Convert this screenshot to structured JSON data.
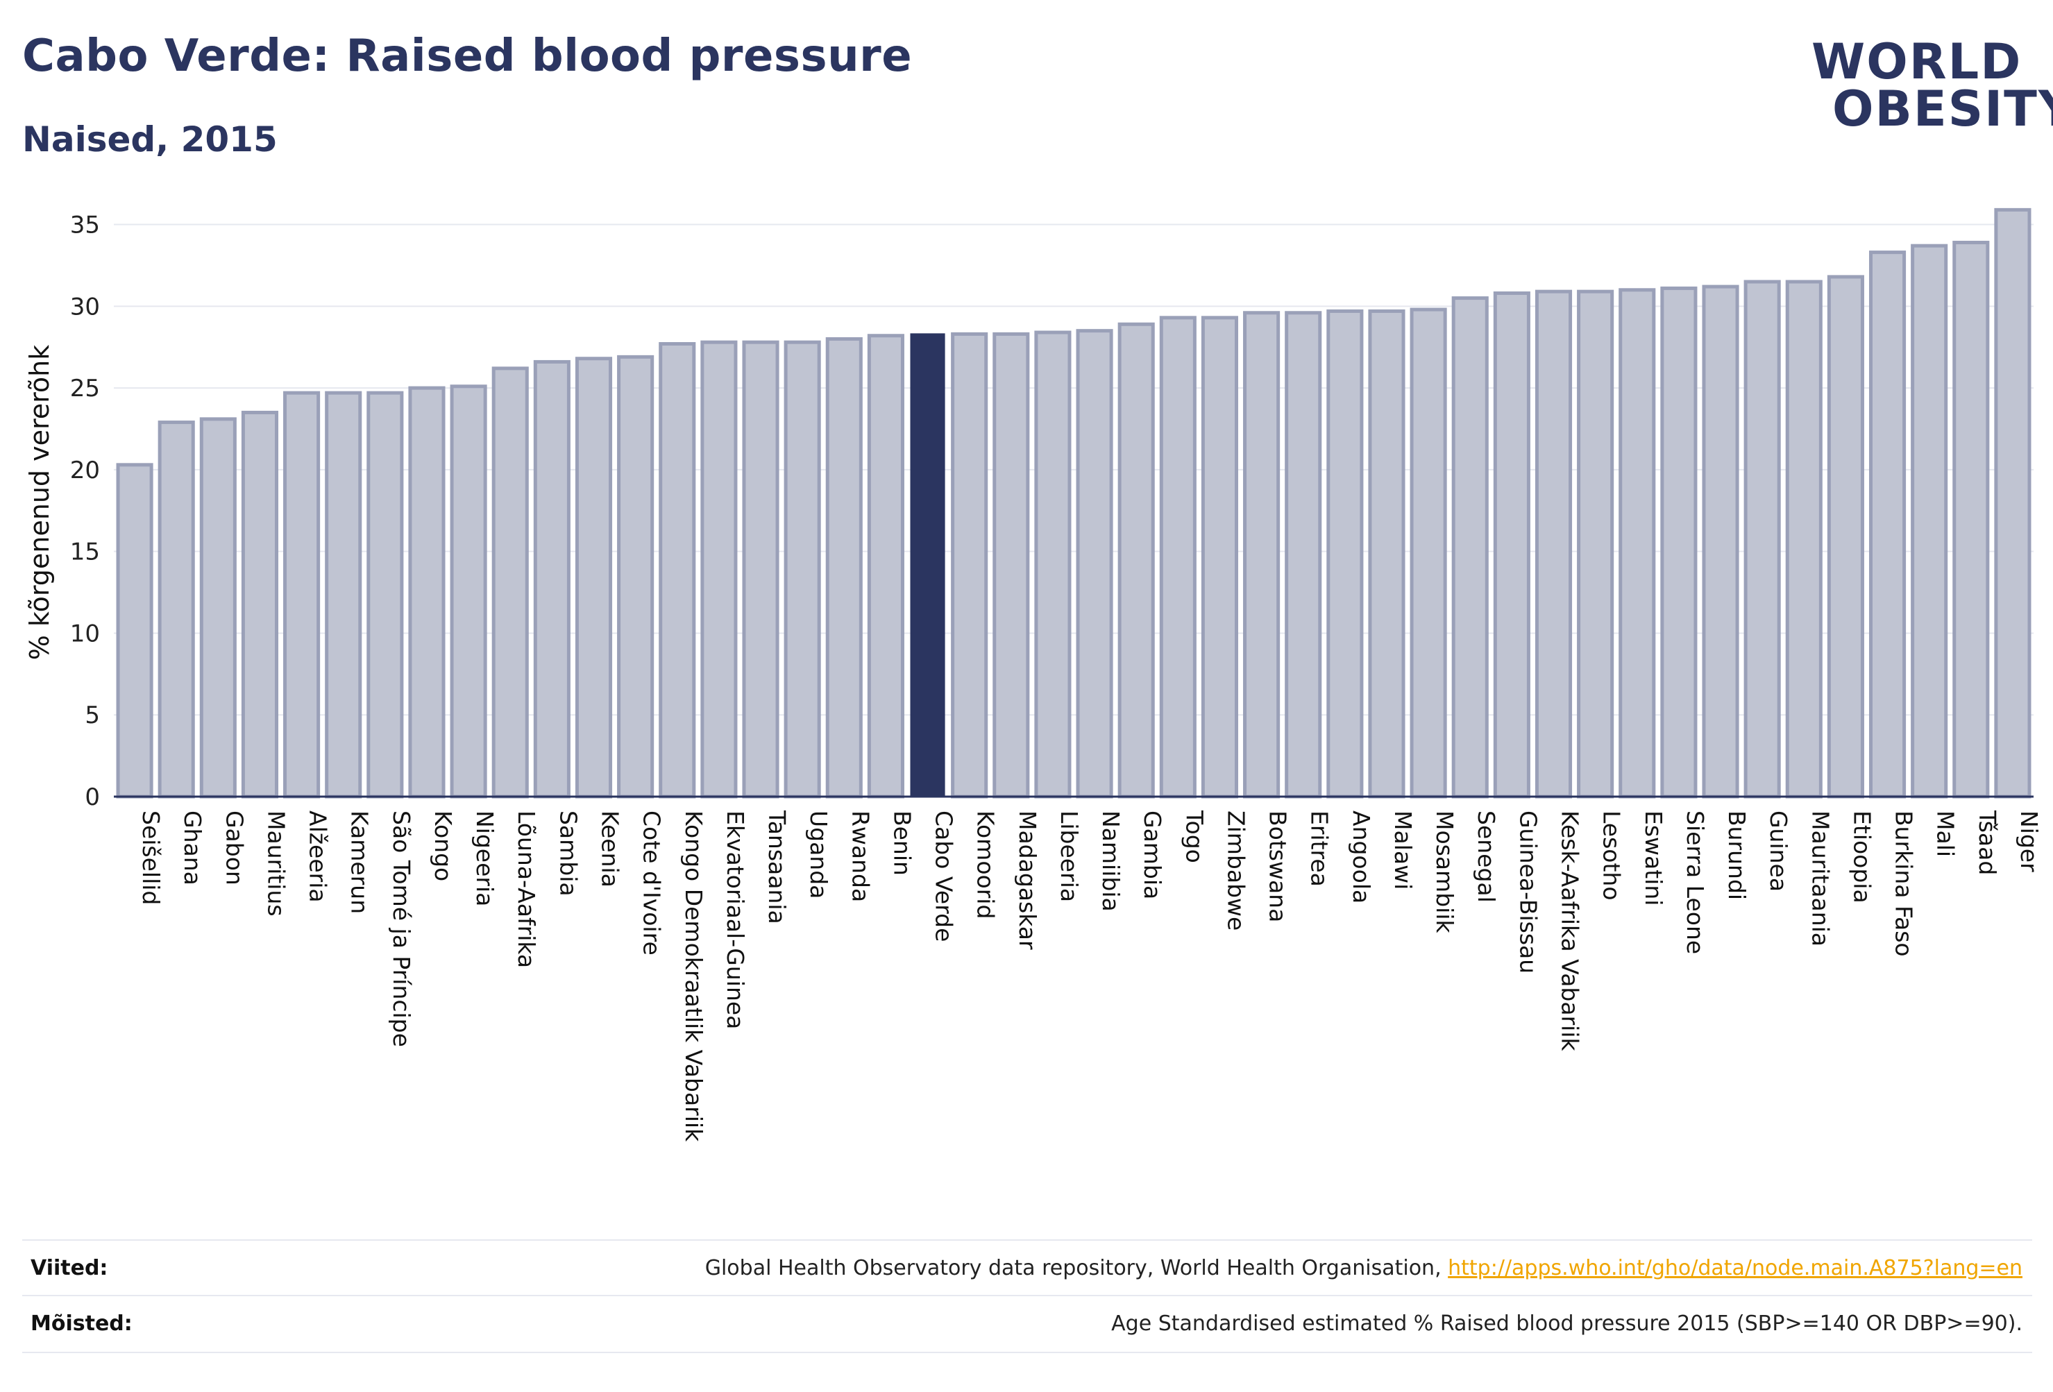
{
  "header": {
    "title": "Cabo Verde: Raised blood pressure",
    "subtitle": "Naised, 2015"
  },
  "logo": {
    "line1_before": "W",
    "line1_slash_letter": "O",
    "line1_after": "RLD",
    "line2_slash_letter": "O",
    "line2_after": "BESITY",
    "colors": {
      "navy": "#2b3560",
      "teal": "#3bbfb5",
      "coral": "#e8715a"
    }
  },
  "chart_data": {
    "type": "bar",
    "ylabel": "% kõrgenenud vererõhk",
    "ylim": [
      0,
      36
    ],
    "yticks": [
      0,
      5,
      10,
      15,
      20,
      25,
      30,
      35
    ],
    "grid": true,
    "highlight": "Cabo Verde",
    "colors": {
      "bar": "#c0c4d2",
      "bar_border": "#9aa0b8",
      "highlight": "#2b3560"
    },
    "categories": [
      "Seišellid",
      "Ghana",
      "Gabon",
      "Mauritius",
      "Alžeeria",
      "Kamerun",
      "São Tomé ja Príncipe",
      "Kongo",
      "Nigeeria",
      "Lõuna-Aafrika",
      "Sambia",
      "Keenia",
      "Cote d'Ivoire",
      "Kongo Demokraatlik Vabariik",
      "Ekvatoriaal-Guinea",
      "Tansaania",
      "Uganda",
      "Rwanda",
      "Benin",
      "Cabo Verde",
      "Komoorid",
      "Madagaskar",
      "Libeeria",
      "Namiibia",
      "Gambia",
      "Togo",
      "Zimbabwe",
      "Botswana",
      "Eritrea",
      "Angoola",
      "Malawi",
      "Mosambiik",
      "Senegal",
      "Guinea-Bissau",
      "Kesk-Aafrika Vabariik",
      "Lesotho",
      "Eswatini",
      "Sierra Leone",
      "Burundi",
      "Guinea",
      "Mauritaania",
      "Etioopia",
      "Burkina Faso",
      "Mali",
      "Tšaad",
      "Niger"
    ],
    "values": [
      20.3,
      22.9,
      23.1,
      23.5,
      24.7,
      24.7,
      24.7,
      25.0,
      25.1,
      26.2,
      26.6,
      26.8,
      26.9,
      27.7,
      27.8,
      27.8,
      27.8,
      28.0,
      28.2,
      28.3,
      28.3,
      28.3,
      28.4,
      28.5,
      28.9,
      29.3,
      29.3,
      29.6,
      29.6,
      29.7,
      29.7,
      29.8,
      30.5,
      30.8,
      30.9,
      30.9,
      31.0,
      31.1,
      31.2,
      31.5,
      31.5,
      31.8,
      33.3,
      33.7,
      33.9,
      35.9
    ]
  },
  "footer": {
    "sources_label": "Viited:",
    "sources_text": "Global Health Observatory data repository, World Health Organisation, ",
    "sources_link": "http://apps.who.int/gho/data/node.main.A875?lang=en",
    "definitions_label": "Mõisted:",
    "definitions_text": "Age Standardised estimated % Raised blood pressure 2015 (SBP>=140 OR DBP>=90)."
  }
}
